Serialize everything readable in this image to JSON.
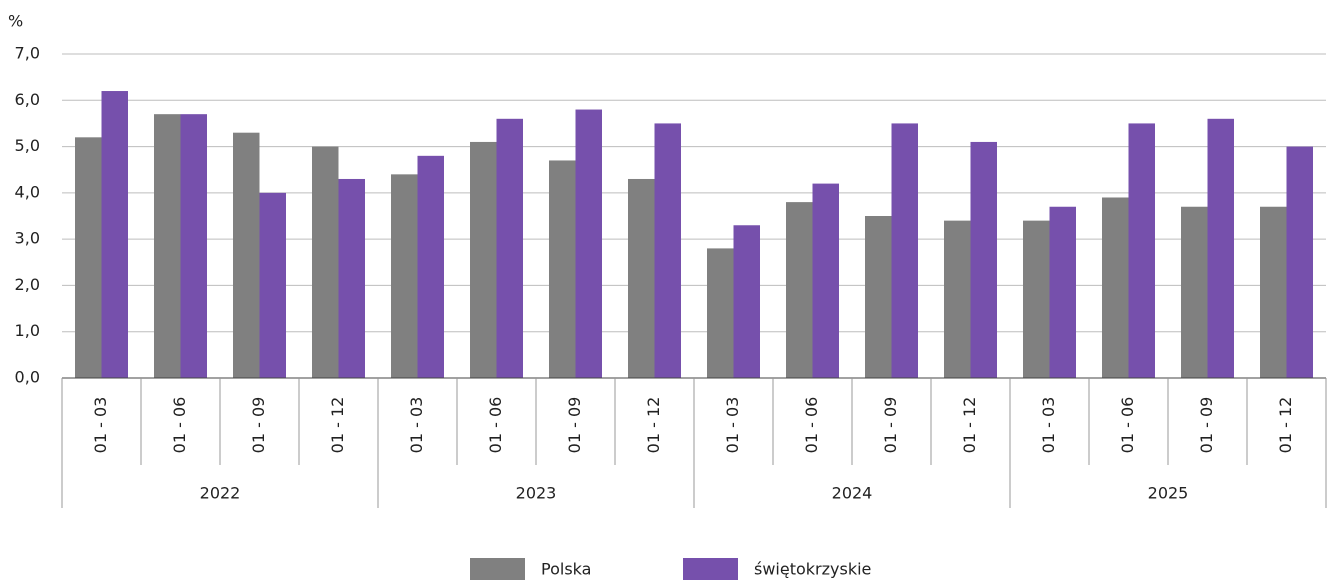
{
  "chart_data": {
    "type": "bar",
    "y_unit": "%",
    "categories": [
      "01 - 03",
      "01 - 06",
      "01 - 09",
      "01 - 12",
      "01 - 03",
      "01 - 06",
      "01 - 09",
      "01 - 12",
      "01 - 03",
      "01 - 06",
      "01 - 09",
      "01 - 12",
      "01 - 03",
      "01 - 06",
      "01 - 09",
      "01 - 12"
    ],
    "category_groups": [
      "2022",
      "2023",
      "2024",
      "2025"
    ],
    "series": [
      {
        "name": "Polska",
        "color": "#808080",
        "values": [
          5.2,
          5.7,
          5.3,
          5.0,
          4.4,
          5.1,
          4.7,
          4.3,
          2.8,
          3.8,
          3.5,
          3.4,
          3.4,
          3.9,
          3.7,
          3.7
        ]
      },
      {
        "name": "świętokrzyskie",
        "color": "#7650ac",
        "values": [
          6.2,
          5.7,
          4.0,
          4.3,
          4.8,
          5.6,
          5.8,
          5.5,
          3.3,
          4.2,
          5.5,
          5.1,
          3.7,
          5.5,
          5.6,
          5.0
        ]
      }
    ],
    "ylim": [
      0,
      7
    ],
    "yticks": [
      {
        "value": 0,
        "label": "0,0"
      },
      {
        "value": 1,
        "label": "1,0"
      },
      {
        "value": 2,
        "label": "2,0"
      },
      {
        "value": 3,
        "label": "3,0"
      },
      {
        "value": 4,
        "label": "4,0"
      },
      {
        "value": 5,
        "label": "5,0"
      },
      {
        "value": 6,
        "label": "6,0"
      },
      {
        "value": 7,
        "label": "7,0"
      }
    ],
    "grid": true,
    "legend": "bottom"
  }
}
